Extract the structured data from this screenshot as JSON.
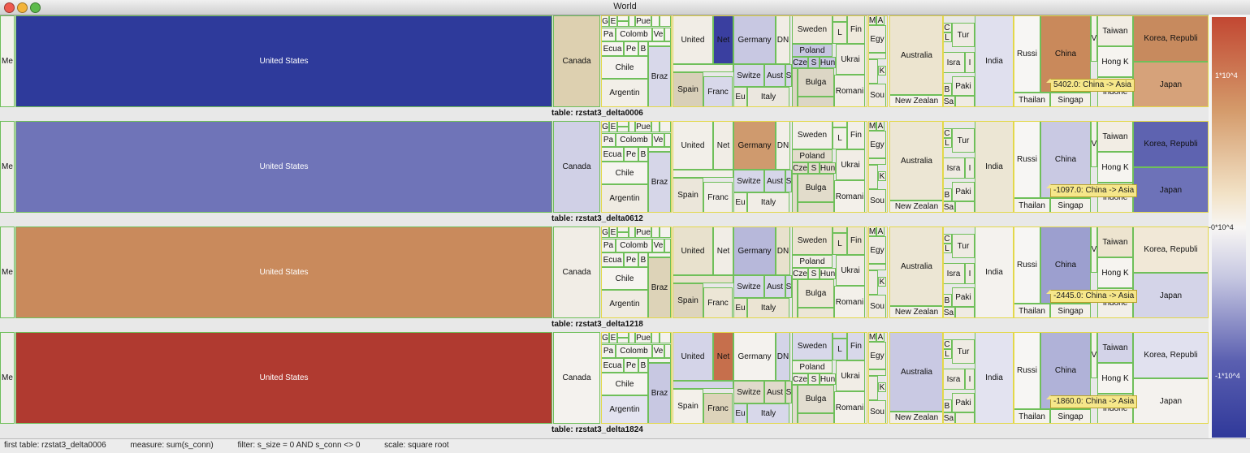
{
  "window": {
    "title": "World"
  },
  "legend": {
    "ticks": [
      "1*10^4",
      "-0*10^4",
      "-1*10^4"
    ]
  },
  "status": {
    "first_table": "first table: rzstat3_delta0006",
    "measure": "measure: sum(s_conn)",
    "filter": "filter: s_size = 0 AND s_conn <> 0",
    "scale": "scale: square root"
  },
  "countries": {
    "me": "Me",
    "us": "United States",
    "canada": "Canada",
    "g": "G",
    "e": "E",
    "pue": "Pue",
    "pa": "Pa",
    "colomb": "Colomb",
    "ve": "Ve",
    "ecua": "Ecua",
    "pe": "Pe",
    "b": "B",
    "chile": "Chile",
    "braz": "Braz",
    "argentin": "Argentin",
    "united": "United",
    "net": "Net",
    "germany": "Germany",
    "dn": "DN",
    "spain": "Spain",
    "franc": "Franc",
    "switze": "Switze",
    "aust": "Aust",
    "s": "S",
    "eu": "Eu",
    "italy": "Italy",
    "sweden": "Sweden",
    "l": "L",
    "fin": "Fin",
    "poland": "Poland",
    "ukrai": "Ukrai",
    "cze": "Cze",
    "hun": "Hun",
    "bulga": "Bulga",
    "romani": "Romani",
    "m": "M",
    "a": "A",
    "egy": "Egy",
    "k": "K",
    "sou": "Sou",
    "australia": "Australia",
    "newzealand": "New Zealan",
    "c": "C",
    "tur": "Tur",
    "isra": "Isra",
    "i": "I",
    "pak": "Paki",
    "sa": "Sa",
    "india": "India",
    "russi": "Russi",
    "thailan": "Thailan",
    "china": "China",
    "singap": "Singap",
    "v": "V",
    "taiwan": "Taiwan",
    "hongk": "Hong K",
    "indone": "Indone",
    "korea": "Korea, Republi",
    "japan": "Japan"
  },
  "rows": [
    {
      "table": "table: rzstat3_delta0006",
      "tooltip": "5402.0: China -> Asia",
      "colors": {
        "me": "#f2f1ec",
        "us": "#2e3a9b",
        "canada": "#ddd0b0",
        "americas": "#f7f5f1",
        "chile": "#f4f2ee",
        "braz": "#d8d8ea",
        "argentin": "#f2efe8",
        "united": "#f1ede6",
        "net": "#3a3fa0",
        "germany": "#c8c8e2",
        "spain": "#d8cfb8",
        "franc": "#d8d8ea",
        "swiss": "#d5d5e8",
        "italy": "#ebe7df",
        "sweden": "#efe9dc",
        "poland": "#c7c7e1",
        "ukrai": "#efebe3",
        "bulga": "#dcd6c5",
        "romani": "#f1ede6",
        "me2": "#efebe3",
        "australia": "#ece4cf",
        "nz": "#f5f2ec",
        "tur": "#efebe3",
        "india": "#e0e0ee",
        "russi": "#f7f6f4",
        "china": "#c9895b",
        "singap": "#f4f1ea",
        "taiwan": "#f2ede4",
        "hongk": "#f6f4f0",
        "indone": "#f2efe9",
        "korea": "#c78a5e",
        "japan": "#d6a27a"
      }
    },
    {
      "table": "table: rzstat3_delta0612",
      "tooltip": "-1097.0: China -> Asia",
      "colors": {
        "me": "#efedea",
        "us": "#6f74b8",
        "canada": "#d0d0e6",
        "americas": "#f4f2ee",
        "chile": "#f6f4f0",
        "braz": "#d6d6e8",
        "argentin": "#efebe2",
        "united": "#f2efe9",
        "net": "#f1ede6",
        "germany": "#cf9a6e",
        "spain": "#ebe6da",
        "franc": "#f2efe9",
        "swiss": "#d6d6e9",
        "italy": "#f1ede6",
        "sweden": "#f2efe9",
        "poland": "#e2dccc",
        "ukrai": "#f1ede6",
        "bulga": "#e2dccb",
        "romani": "#f3f0ea",
        "me2": "#efebe3",
        "australia": "#ece6d4",
        "nz": "#f2efe9",
        "tur": "#efebe3",
        "india": "#ece6d4",
        "russi": "#f7f6f4",
        "china": "#c9c9e3",
        "singap": "#f4f1ea",
        "taiwan": "#f2ede4",
        "hongk": "#f6f4f0",
        "indone": "#f2efe9",
        "korea": "#5e63b0",
        "japan": "#6d72b8"
      }
    },
    {
      "table": "table: rzstat3_delta1218",
      "tooltip": "-2445.0: China -> Asia",
      "colors": {
        "me": "#efedea",
        "us": "#c98a5c",
        "canada": "#f1ede6",
        "americas": "#f4f2ee",
        "chile": "#f6f4f0",
        "braz": "#ddd3b8",
        "argentin": "#efebe2",
        "united": "#e8e1cd",
        "net": "#f1ede6",
        "germany": "#b7b8da",
        "spain": "#ddd4bd",
        "franc": "#ece6d6",
        "swiss": "#d6d6e9",
        "italy": "#ebe4d3",
        "sweden": "#ebe4d1",
        "poland": "#f1ede6",
        "ukrai": "#f1ede6",
        "bulga": "#ece6d6",
        "romani": "#f3f0ea",
        "me2": "#efebe3",
        "australia": "#ece6d4",
        "nz": "#f2efe9",
        "tur": "#efebe3",
        "india": "#f4f2ee",
        "russi": "#f7f6f4",
        "china": "#9c9fcf",
        "singap": "#f4f1ea",
        "taiwan": "#ede4cf",
        "hongk": "#f6f4f0",
        "indone": "#f2efe9",
        "korea": "#f1e8d7",
        "japan": "#d4d4e8"
      }
    },
    {
      "table": "table: rzstat3_delta1824",
      "tooltip": "-1860.0: China -> Asia",
      "colors": {
        "me": "#efedea",
        "us": "#b03a30",
        "canada": "#f4f2ee",
        "americas": "#f4f2ee",
        "chile": "#f6f4f0",
        "braz": "#c8c8e2",
        "argentin": "#e3e3f0",
        "united": "#d4d4e8",
        "net": "#c66f4c",
        "germany": "#f4f2ee",
        "spain": "#f3f0ea",
        "franc": "#ddd3ba",
        "swiss": "#e0dacb",
        "italy": "#d8d8ea",
        "sweden": "#d8d8ea",
        "poland": "#f1ede6",
        "ukrai": "#f1ede6",
        "bulga": "#e2ddd0",
        "romani": "#f3f0ea",
        "me2": "#efebe3",
        "australia": "#c9c9e3",
        "nz": "#f2efe9",
        "tur": "#efebe3",
        "india": "#e3e3f0",
        "russi": "#f7f6f4",
        "china": "#b0b2d8",
        "singap": "#f4f1ea",
        "taiwan": "#d3d3e8",
        "hongk": "#f6f4f0",
        "indone": "#f2efe9",
        "korea": "#e1e1ef",
        "japan": "#f4f2ee"
      }
    }
  ]
}
